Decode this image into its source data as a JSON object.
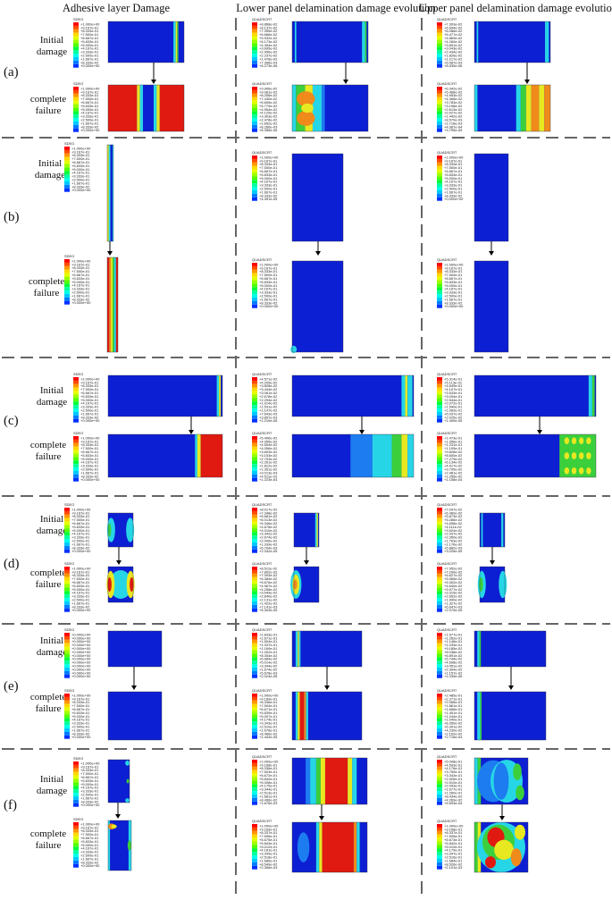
{
  "figure": {
    "column_headers": [
      "Adhesive layer Damage",
      "Lower panel delamination damage evolution",
      "Upper panel delamination damage evolution"
    ],
    "stage_labels": {
      "initial_line1": "Initial",
      "initial_line2": "damage",
      "complete_line1": "complete",
      "complete_line2": "failure"
    },
    "legend_titles": {
      "adhesive": "SDEG",
      "panel": "QUADSCRT"
    },
    "legend_palette": [
      "#ff0000",
      "#ff4a00",
      "#ff9500",
      "#ffd900",
      "#e3ff00",
      "#9cff00",
      "#52ff00",
      "#00ff3a",
      "#00ff9e",
      "#00ffe8",
      "#00c8ff",
      "#007bff",
      "#0030ff"
    ],
    "damage_colors": {
      "background": "#0d1fd2",
      "low": "#1c7cf0",
      "cyan": "#27d6e6",
      "green": "#3ccf3c",
      "yellow": "#e8e820",
      "orange": "#f08a1a",
      "red": "#e01a10"
    },
    "rows": [
      {
        "label": "(a)",
        "initial": {
          "adhesive": [
            "+1.000e+00",
            "+9.167e-01",
            "+8.333e-01",
            "+7.500e-01",
            "+6.667e-01",
            "+5.833e-01",
            "+5.000e-01",
            "+4.167e-01",
            "+3.333e-01",
            "+2.500e-01",
            "+1.667e-01",
            "+8.333e-02",
            "+0.000e+00"
          ],
          "lower": [
            "+8.868e-02",
            "+8.137e-02",
            "+7.395e-02",
            "+6.666e-02",
            "+5.932e-02",
            "+5.173e-02",
            "+4.454e-02",
            "+3.695e-02",
            "+2.956e-02",
            "+2.237e-02",
            "+1.478e-02",
            "+7.396e-03",
            "+6.273e-06"
          ],
          "upper": [
            "+7.303e-02",
            "+6.694e-02",
            "+6.086e-02",
            "+5.477e-02",
            "+4.869e-02",
            "+4.260e-02",
            "+3.651e-02",
            "+3.043e-02",
            "+2.434e-02",
            "+1.826e-02",
            "+1.217e-02",
            "+6.087e-03",
            "+8.535e-06"
          ]
        },
        "complete": {
          "adhesive": [
            "+1.000e+00",
            "+9.167e-01",
            "+8.333e-01",
            "+7.500e-01",
            "+6.667e-01",
            "+5.833e-01",
            "+5.000e-01",
            "+4.167e-01",
            "+3.333e-01",
            "+2.500e-01",
            "+1.667e-01",
            "+8.333e-02",
            "+0.000e+00"
          ],
          "lower": [
            "+9.906e-02",
            "+9.081e-02",
            "+8.256e-02",
            "+7.430e-02",
            "+6.605e-02",
            "+5.779e-02",
            "+4.954e-02",
            "+4.129e-02",
            "+3.303e-02",
            "+2.478e-02",
            "+1.652e-02",
            "+8.266e-03",
            "+6.356e-06"
          ],
          "upper": [
            "+6.342e-02",
            "+5.468e-02",
            "+4.953e-02",
            "+4.368e-02",
            "+3.783e-02",
            "+3.198e-02",
            "+2.613e-02",
            "+2.027e-02",
            "+1.442e-02",
            "+8.570e-03",
            "+2.718e-03",
            "+4.987e-04",
            "+3.795e-05"
          ]
        }
      },
      {
        "label": "(b)",
        "initial": {
          "adhesive": [
            "+1.000e+00",
            "+9.167e-01",
            "+8.333e-01",
            "+7.500e-01",
            "+6.667e-01",
            "+5.833e-01",
            "+5.000e-01",
            "+4.167e-01",
            "+3.333e-01",
            "+2.500e-01",
            "+1.667e-01",
            "+8.333e-02",
            "+0.000e+00"
          ],
          "lower": [
            "+1.000e+00",
            "+9.167e-01",
            "+8.333e-01",
            "+7.500e-01",
            "+6.667e-01",
            "+5.833e-01",
            "+5.000e-01",
            "+4.167e-01",
            "+3.333e-01",
            "+2.500e-01",
            "+1.667e-01",
            "+8.333e-02",
            "+4.491e-05"
          ],
          "upper": [
            "+1.000e+00",
            "+9.167e-01",
            "+8.333e-01",
            "+7.500e-01",
            "+6.667e-01",
            "+5.833e-01",
            "+5.000e-01",
            "+4.167e-01",
            "+3.333e-01",
            "+2.500e-01",
            "+1.667e-01",
            "+8.333e-02",
            "+0.000e+00"
          ]
        },
        "complete": {
          "adhesive": [
            "+1.000e+00",
            "+9.167e-01",
            "+8.333e-01",
            "+7.500e-01",
            "+6.667e-01",
            "+5.833e-01",
            "+5.000e-01",
            "+4.167e-01",
            "+3.333e-01",
            "+2.500e-01",
            "+1.667e-01",
            "+8.333e-02",
            "+0.000e+00"
          ],
          "lower": [
            "+1.000e+00",
            "+9.167e-01",
            "+8.333e-01",
            "+7.500e-01",
            "+6.667e-01",
            "+5.833e-01",
            "+5.000e-01",
            "+4.167e-01",
            "+3.333e-01",
            "+2.500e-01",
            "+1.667e-01",
            "+8.333e-02",
            "+0.000e+00"
          ],
          "upper": [
            "+1.000e+00",
            "+9.167e-01",
            "+8.333e-01",
            "+7.500e-01",
            "+6.667e-01",
            "+5.833e-01",
            "+5.000e-01",
            "+4.167e-01",
            "+3.333e-01",
            "+2.500e-01",
            "+1.667e-01",
            "+8.333e-02",
            "+0.000e+00"
          ]
        }
      },
      {
        "label": "(c)",
        "initial": {
          "adhesive": [
            "+1.000e+00",
            "+9.167e-01",
            "+8.333e-01",
            "+7.500e-01",
            "+6.667e-01",
            "+5.833e-01",
            "+5.000e-01",
            "+4.167e-01",
            "+3.333e-01",
            "+2.500e-01",
            "+1.667e-01",
            "+8.333e-02",
            "+0.000e+00"
          ],
          "lower": [
            "+4.571e-02",
            "+4.209e-02",
            "+3.828e-02",
            "+3.444e-02",
            "+3.061e-02",
            "+2.678e-02",
            "+2.294e-02",
            "+1.914e-02",
            "+1.531e-02",
            "+1.147e-02",
            "+7.643e-03",
            "+3.857e-03",
            "+1.219e-05"
          ],
          "upper": [
            "+5.314e-01",
            "+5.113e-01",
            "+4.649e-01",
            "+4.107e-01",
            "+3.533e-01",
            "+3.094e-01",
            "+2.544e-01",
            "+2.072e-01",
            "+1.540e-01",
            "+1.083e-01",
            "+6.037e-02",
            "+2.025e-02",
            "+1.400e-05"
          ]
        },
        "complete": {
          "adhesive": [
            "+1.000e+00",
            "+9.167e-01",
            "+8.333e-01",
            "+7.500e-01",
            "+6.667e-01",
            "+5.833e-01",
            "+5.000e-01",
            "+4.167e-01",
            "+3.333e-01",
            "+2.500e-01",
            "+1.667e-01",
            "+8.333e-02",
            "+0.000e+00"
          ],
          "lower": [
            "+5.406e-02",
            "+4.955e-02",
            "+4.504e-02",
            "+4.056e-02",
            "+3.603e-02",
            "+3.153e-02",
            "+2.703e-02",
            "+2.261e-02",
            "+1.812e-02",
            "+1.351e-02",
            "+9.013e-03",
            "+4.511e-03",
            "+1.223e-04"
          ],
          "upper": [
            "+1.473e-01",
            "+1.356e-01",
            "+1.231e-01",
            "+1.105e-01",
            "+9.828e-02",
            "+8.600e-02",
            "+7.279e-02",
            "+6.134e-02",
            "+4.917e-02",
            "+3.705e-02",
            "+2.481e-02",
            "+1.256e-02",
            "+1.158e-04"
          ]
        }
      },
      {
        "label": "(d)",
        "initial": {
          "adhesive": [
            "+1.000e+00",
            "+9.167e-01",
            "+8.333e-01",
            "+7.500e-01",
            "+6.667e-01",
            "+5.833e-01",
            "+5.000e-01",
            "+4.167e-01",
            "+3.333e-01",
            "+2.500e-01",
            "+1.667e-01",
            "+8.333e-02",
            "+0.000e+00"
          ],
          "lower": [
            "+8.017e-02",
            "+7.348e-02",
            "+6.681e-02",
            "+6.013e-02",
            "+5.346e-02",
            "+4.678e-02",
            "+4.010e-02",
            "+3.342e-02",
            "+2.674e-02",
            "+2.006e-02",
            "+1.339e-02",
            "+6.704e-03",
            "+2.332e-05"
          ],
          "upper": [
            "+7.047e-02",
            "+6.460e-02",
            "+5.873e-02",
            "+5.286e-02",
            "+4.698e-02",
            "+4.111e-02",
            "+3.524e-02",
            "+2.937e-02",
            "+2.350e-02",
            "+1.763e-02",
            "+1.176e-02",
            "+5.882e-03",
            "+3.026e-05"
          ]
        },
        "complete": {
          "adhesive": [
            "+1.000e+00",
            "+9.167e-01",
            "+8.333e-01",
            "+7.500e-01",
            "+6.667e-01",
            "+5.833e-01",
            "+5.000e-01",
            "+4.167e-01",
            "+3.333e-01",
            "+2.500e-01",
            "+1.667e-01",
            "+8.333e-02",
            "+0.000e+00"
          ],
          "lower": [
            "+8.511e-02",
            "+7.802e-02",
            "+7.093e-02",
            "+6.384e-02",
            "+5.676e-02",
            "+4.967e-02",
            "+4.258e-02",
            "+3.549e-02",
            "+2.840e-02",
            "+2.131e-02",
            "+1.422e-02",
            "+7.141e-03",
            "+5.303e-05"
          ],
          "upper": [
            "+7.952e-02",
            "+7.290e-02",
            "+6.627e-02",
            "+5.965e-02",
            "+5.302e-02",
            "+4.640e-02",
            "+3.977e-02",
            "+3.315e-02",
            "+2.652e-02",
            "+1.990e-02",
            "+1.327e-02",
            "+6.647e-03",
            "+2.075e-05"
          ]
        }
      },
      {
        "label": "(e)",
        "initial": {
          "adhesive": [
            "+0.000e+00",
            "+0.000e+00",
            "+0.000e+00",
            "+0.000e+00",
            "+0.000e+00",
            "+0.000e+00",
            "+0.000e+00",
            "+0.000e+00",
            "+0.000e+00",
            "+0.000e+00",
            "+0.000e+00",
            "+0.000e+00",
            "+0.000e+00"
          ],
          "lower": [
            "+1.833e-01",
            "+1.671e-01",
            "+1.504e-01",
            "+1.337e-01",
            "+1.169e-01",
            "+1.002e-01",
            "+8.354e-02",
            "+6.684e-02",
            "+5.014e-02",
            "+3.344e-02",
            "+1.674e-02",
            "+5.678e-03",
            "+2.024e-05"
          ],
          "upper": [
            "+1.577e-01",
            "+1.262e-01",
            "+1.148e-01",
            "+1.033e-01",
            "+9.185e-02",
            "+8.038e-02",
            "+6.891e-02",
            "+5.744e-02",
            "+4.598e-02",
            "+3.451e-02",
            "+2.304e-02",
            "+1.157e-02",
            "+1.039e-05"
          ]
        },
        "complete": {
          "adhesive": [
            "+1.000e+00",
            "+9.167e-01",
            "+8.333e-01",
            "+7.500e-01",
            "+6.667e-01",
            "+5.833e-01",
            "+5.000e-01",
            "+4.167e-01",
            "+3.333e-01",
            "+2.500e-01",
            "+1.667e-01",
            "+8.333e-02",
            "+0.000e+00"
          ],
          "lower": [
            "+1.000e+00",
            "+9.169e-01",
            "+8.336e-01",
            "+7.504e-01",
            "+6.671e-01",
            "+5.839e-01",
            "+5.007e-01",
            "+4.174e-01",
            "+3.343e-01",
            "+2.510e-01",
            "+1.678e-01",
            "+8.466e-02",
            "+1.444e-05"
          ],
          "upper": [
            "+2.485e-01",
            "+2.271e-01",
            "+2.066e-01",
            "+1.861e-01",
            "+1.656e-01",
            "+1.451e-01",
            "+1.244e-01",
            "+1.040e-01",
            "+8.350e-02",
            "+6.301e-02",
            "+4.230e-02",
            "+2.162e-02",
            "+2.716e-04"
          ]
        }
      },
      {
        "label": "(f)",
        "initial": {
          "adhesive": [
            "+1.000e+00",
            "+9.167e-01",
            "+8.333e-01",
            "+7.500e-01",
            "+6.667e-01",
            "+5.833e-01",
            "+5.000e-01",
            "+4.167e-01",
            "+3.333e-01",
            "+2.500e-01",
            "+1.667e-01",
            "+8.333e-02",
            "+0.000e+00"
          ],
          "lower": [
            "+1.000e+00",
            "+9.168e-01",
            "+8.336e-01",
            "+7.503e-01",
            "+6.672e-01",
            "+5.840e-01",
            "+5.008e-01",
            "+4.175e-01",
            "+3.344e-01",
            "+2.513e-01",
            "+1.681e-01",
            "+8.496e-02",
            "+1.676e-03"
          ],
          "upper": [
            "+5.008e-01",
            "+4.593e-01",
            "+4.176e-01",
            "+3.759e-01",
            "+3.343e-01",
            "+2.926e-01",
            "+2.510e-01",
            "+2.093e-01",
            "+1.677e-01",
            "+1.260e-01",
            "+8.434e-02",
            "+4.269e-02",
            "+5.693e-04"
          ]
        },
        "complete": {
          "adhesive": [
            "+1.000e+00",
            "+9.167e-01",
            "+8.333e-01",
            "+7.500e-01",
            "+6.667e-01",
            "+5.833e-01",
            "+5.000e-01",
            "+4.167e-01",
            "+3.333e-01",
            "+2.500e-01",
            "+1.667e-01",
            "+8.333e-02",
            "+0.000e+00"
          ],
          "lower": [
            "+1.000e+00",
            "+9.169e-01",
            "+8.337e-01",
            "+7.506e-01",
            "+6.675e-01",
            "+5.843e-01",
            "+5.012e-01",
            "+4.181e-01",
            "+3.349e-01",
            "+2.518e-01",
            "+1.686e-01",
            "+8.549e-02",
            "+2.356e-03"
          ],
          "upper": [
            "+1.000e+00",
            "+9.168e-01",
            "+8.337e-01",
            "+7.505e-01",
            "+6.673e-01",
            "+5.842e-01",
            "+5.010e-01",
            "+4.179e-01",
            "+3.347e-01",
            "+2.516e-01",
            "+1.684e-01",
            "+8.526e-02",
            "+2.101e-03"
          ]
        }
      }
    ]
  }
}
